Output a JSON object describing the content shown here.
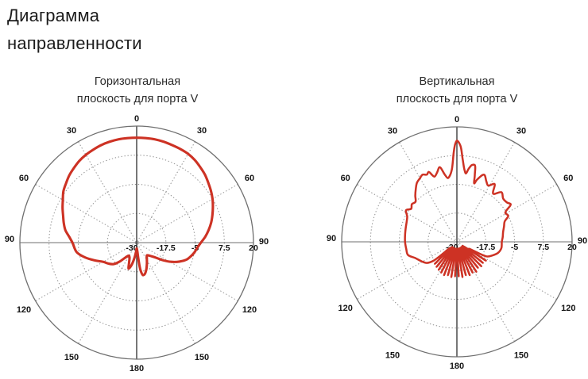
{
  "page_title": {
    "line1": "Диаграмма",
    "line2": "направленности"
  },
  "colors": {
    "pattern_line": "#cd3224",
    "grid_dotted": "#8f8f8f",
    "outer_circle": "#6f6f6f",
    "horizontal_axis": "#6f6f6f",
    "vertical_axis": "#3d3d3d",
    "label_text": "#141414"
  },
  "chart_data": [
    {
      "type": "polar-line",
      "title_line1": "Горизонтальная",
      "title_line2": "плоскость для порта V",
      "legend": "none",
      "grid": "dotted circles at 25/50/75%, dotted spokes every 30deg",
      "angle_ticks_deg": [
        0,
        30,
        60,
        90,
        120,
        150,
        180
      ],
      "radial_ticks": [
        {
          "db": -30,
          "label": "-30"
        },
        {
          "db": -17.5,
          "label": "-17.5"
        },
        {
          "db": -5,
          "label": "-5"
        },
        {
          "db": 7.5,
          "label": "7.5"
        },
        {
          "db": 20,
          "label": "20"
        }
      ],
      "r_axis": {
        "min_db": -30,
        "max_db": 20
      },
      "series": [
        {
          "name": "horizontal-plane-pattern",
          "points_deg_db": [
            [
              0,
              15
            ],
            [
              5,
              15
            ],
            [
              10,
              15
            ],
            [
              15,
              14.8
            ],
            [
              20,
              14.5
            ],
            [
              25,
              14.3
            ],
            [
              30,
              14
            ],
            [
              35,
              13.3
            ],
            [
              40,
              12.3
            ],
            [
              45,
              11.3
            ],
            [
              50,
              10
            ],
            [
              55,
              8.8
            ],
            [
              60,
              7.5
            ],
            [
              65,
              6
            ],
            [
              70,
              4.5
            ],
            [
              75,
              3
            ],
            [
              80,
              1.3
            ],
            [
              85,
              -0.5
            ],
            [
              90,
              -2.5
            ],
            [
              95,
              -4
            ],
            [
              100,
              -5
            ],
            [
              105,
              -6.3
            ],
            [
              109,
              -7.5
            ],
            [
              114,
              -10
            ],
            [
              119,
              -13
            ],
            [
              124,
              -16.5
            ],
            [
              129,
              -20
            ],
            [
              135,
              -22
            ],
            [
              141,
              -23
            ],
            [
              147,
              -22
            ],
            [
              154,
              -20
            ],
            [
              161,
              -17.5
            ],
            [
              166,
              -16
            ],
            [
              169,
              -15.8
            ],
            [
              172,
              -18
            ],
            [
              174,
              -23
            ],
            [
              176,
              -26.5
            ],
            [
              180,
              -27.5
            ],
            [
              184,
              -26
            ],
            [
              188,
              -23.5
            ],
            [
              193,
              -20
            ],
            [
              197,
              -18.3
            ],
            [
              201,
              -21
            ],
            [
              206,
              -23
            ],
            [
              211,
              -23.5
            ],
            [
              217,
              -22
            ],
            [
              222,
              -19
            ],
            [
              227,
              -16.5
            ],
            [
              233,
              -15
            ],
            [
              240,
              -13.5
            ],
            [
              247,
              -10.5
            ],
            [
              254,
              -7
            ],
            [
              261,
              -4
            ],
            [
              270,
              -2.5
            ],
            [
              275,
              -1
            ],
            [
              280,
              1
            ],
            [
              285,
              2.3
            ],
            [
              290,
              3.5
            ],
            [
              295,
              5
            ],
            [
              300,
              6.5
            ],
            [
              305,
              8.3
            ],
            [
              310,
              9.5
            ],
            [
              315,
              10.8
            ],
            [
              320,
              11.8
            ],
            [
              325,
              12.8
            ],
            [
              330,
              13.5
            ],
            [
              335,
              14
            ],
            [
              340,
              14.5
            ],
            [
              345,
              14.8
            ],
            [
              350,
              15
            ],
            [
              355,
              15
            ]
          ]
        }
      ]
    },
    {
      "type": "polar-line",
      "title_line1": "Вертикальная",
      "title_line2": "плоскость для порта V",
      "legend": "none",
      "grid": "dotted circles at 25/50/75%, dotted spokes every 30deg",
      "angle_ticks_deg": [
        0,
        30,
        60,
        90,
        120,
        150,
        180
      ],
      "radial_ticks": [
        {
          "db": -30,
          "label": "-30"
        },
        {
          "db": -17.5,
          "label": "-17.5"
        },
        {
          "db": -5,
          "label": "-5"
        },
        {
          "db": 7.5,
          "label": "7.5"
        },
        {
          "db": 20,
          "label": "20"
        }
      ],
      "r_axis": {
        "min_db": -30,
        "max_db": 20
      },
      "series": [
        {
          "name": "vertical-plane-pattern",
          "points_deg_db": [
            [
              0,
              14
            ],
            [
              2,
              12
            ],
            [
              4,
              6
            ],
            [
              6,
              1.5
            ],
            [
              7.5,
              0
            ],
            [
              9,
              2
            ],
            [
              11,
              4
            ],
            [
              13,
              4.3
            ],
            [
              15,
              0
            ],
            [
              16.5,
              -3.5
            ],
            [
              18,
              -1.5
            ],
            [
              22,
              1.5
            ],
            [
              26,
              -0.8
            ],
            [
              29,
              -2
            ],
            [
              33,
              0
            ],
            [
              37,
              -3.8
            ],
            [
              42,
              -1
            ],
            [
              47,
              -2.5
            ],
            [
              52,
              -2.3
            ],
            [
              55,
              -1.5
            ],
            [
              59,
              -5.5
            ],
            [
              63,
              -5
            ],
            [
              67,
              -7.5
            ],
            [
              72,
              -8.5
            ],
            [
              78,
              -9.5
            ],
            [
              84,
              -10
            ],
            [
              90,
              -10.5
            ],
            [
              98,
              -10.5
            ],
            [
              105,
              -11.5
            ],
            [
              111,
              -13.5
            ],
            [
              116,
              -15.5
            ],
            [
              120,
              -24
            ],
            [
              123,
              -15
            ],
            [
              126,
              -27
            ],
            [
              129,
              -15.5
            ],
            [
              132,
              -26.5
            ],
            [
              135,
              -15
            ],
            [
              138,
              -27
            ],
            [
              141,
              -15.5
            ],
            [
              144,
              -26.5
            ],
            [
              147,
              -14.5
            ],
            [
              150,
              -27
            ],
            [
              153,
              -15
            ],
            [
              156,
              -26.5
            ],
            [
              159,
              -14.5
            ],
            [
              162,
              -27
            ],
            [
              165,
              -15
            ],
            [
              168,
              -26.5
            ],
            [
              171,
              -14.5
            ],
            [
              174,
              -27
            ],
            [
              177,
              -15
            ],
            [
              180,
              -26.5
            ],
            [
              183,
              -15
            ],
            [
              186,
              -27
            ],
            [
              189,
              -14.5
            ],
            [
              192,
              -26.5
            ],
            [
              195,
              -15
            ],
            [
              198,
              -27
            ],
            [
              201,
              -14.5
            ],
            [
              204,
              -26.5
            ],
            [
              207,
              -15
            ],
            [
              210,
              -27
            ],
            [
              213,
              -15.5
            ],
            [
              216,
              -26.5
            ],
            [
              219,
              -16
            ],
            [
              222,
              -27
            ],
            [
              225,
              -16.5
            ],
            [
              228,
              -26
            ],
            [
              231,
              -17
            ],
            [
              235,
              -14
            ],
            [
              241,
              -12.5
            ],
            [
              249,
              -10.5
            ],
            [
              255,
              -8
            ],
            [
              262,
              -7.8
            ],
            [
              270,
              -7.5
            ],
            [
              278,
              -7.3
            ],
            [
              285,
              -7
            ],
            [
              292,
              -6.5
            ],
            [
              297,
              -5.8
            ],
            [
              302,
              -4
            ],
            [
              306,
              -5.5
            ],
            [
              310,
              -4.5
            ],
            [
              314,
              -5
            ],
            [
              318,
              -3
            ],
            [
              322,
              -1
            ],
            [
              326,
              1
            ],
            [
              330,
              2
            ],
            [
              333,
              2.8
            ],
            [
              336,
              2
            ],
            [
              338,
              2.8
            ],
            [
              341,
              0
            ],
            [
              344,
              1.3
            ],
            [
              347,
              3.3
            ],
            [
              350,
              -0.5
            ],
            [
              352,
              -2
            ],
            [
              354,
              -1
            ],
            [
              356,
              1.5
            ],
            [
              358,
              9
            ],
            [
              359,
              12.5
            ]
          ]
        }
      ]
    }
  ]
}
